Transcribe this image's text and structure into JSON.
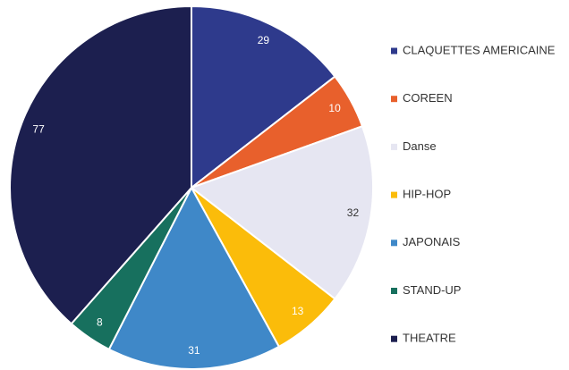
{
  "chart_data": {
    "type": "pie",
    "categories": [
      "CLAQUETTES AMERICAINE",
      "COREEN",
      "Danse",
      "HIP-HOP",
      "JAPONAIS",
      "STAND-UP",
      "THEATRE"
    ],
    "values": [
      29,
      10,
      32,
      13,
      31,
      8,
      77
    ],
    "colors": [
      "#2e3a8c",
      "#e8602c",
      "#e6e6f2",
      "#fbbc0a",
      "#3f88c8",
      "#17705e",
      "#1c1f4f"
    ],
    "legend": "right"
  }
}
